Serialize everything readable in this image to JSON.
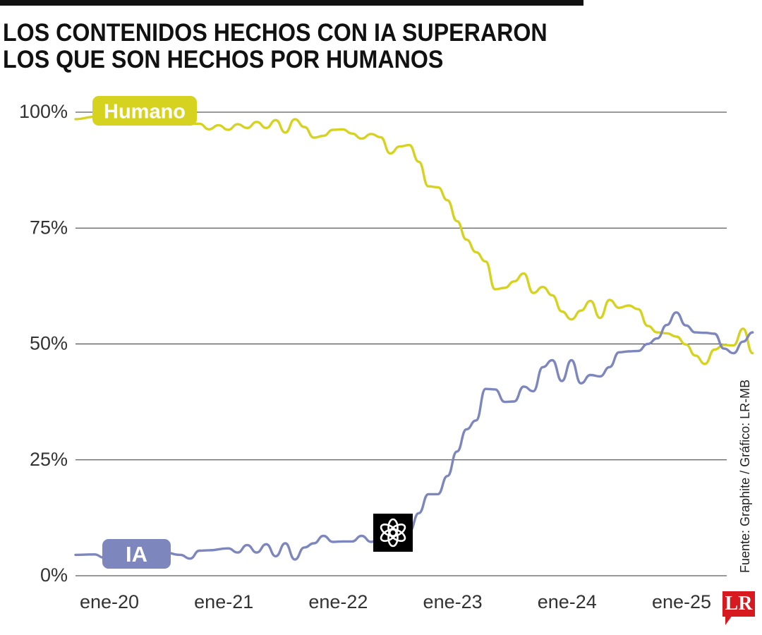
{
  "title": {
    "line1": "LOS CONTENIDOS HECHOS CON IA SUPERARON",
    "line2": "LOS QUE SON HECHOS POR HUMANOS"
  },
  "source": "Fuente: Graphite / Gráfico: LR-MB",
  "logo": {
    "text": "LR",
    "color": "#d71920"
  },
  "openai_icon": "openai-logo-icon",
  "chart_data": {
    "type": "line",
    "x_start": "2020-01",
    "x_end": "2025-05",
    "ylim": [
      0,
      100
    ],
    "yticks": [
      {
        "value": 100,
        "label": "100%"
      },
      {
        "value": 75,
        "label": "75%"
      },
      {
        "value": 50,
        "label": "50%"
      },
      {
        "value": 25,
        "label": "25%"
      },
      {
        "value": 0,
        "label": "0%"
      }
    ],
    "xticks": [
      {
        "x": "2020-01",
        "label": "ene-20"
      },
      {
        "x": "2021-01",
        "label": "ene-21"
      },
      {
        "x": "2022-01",
        "label": "ene-22"
      },
      {
        "x": "2023-01",
        "label": "ene-23"
      },
      {
        "x": "2024-01",
        "label": "ene-24"
      },
      {
        "x": "2025-01",
        "label": "ene-25"
      }
    ],
    "grid": "horizontal",
    "series": [
      {
        "name": "Humano",
        "color": "#d6d320",
        "points": [
          [
            "2020-01",
            98.5
          ],
          [
            "2020-03",
            99.0
          ],
          [
            "2020-05",
            99.0
          ],
          [
            "2020-07",
            98.8
          ],
          [
            "2020-09",
            98.6
          ],
          [
            "2020-11",
            98.3
          ],
          [
            "2020-12",
            97.6
          ],
          [
            "2021-02",
            97.5
          ],
          [
            "2021-03",
            96.3
          ],
          [
            "2021-04",
            97.2
          ],
          [
            "2021-05",
            96.2
          ],
          [
            "2021-06",
            97.4
          ],
          [
            "2021-07",
            96.6
          ],
          [
            "2021-08",
            97.9
          ],
          [
            "2021-09",
            96.6
          ],
          [
            "2021-10",
            98.3
          ],
          [
            "2021-11",
            95.6
          ],
          [
            "2021-12",
            98.5
          ],
          [
            "2022-01",
            96.8
          ],
          [
            "2022-02",
            94.5
          ],
          [
            "2022-03",
            94.9
          ],
          [
            "2022-04",
            96.2
          ],
          [
            "2022-05",
            96.3
          ],
          [
            "2022-06",
            95.4
          ],
          [
            "2022-07",
            94.3
          ],
          [
            "2022-08",
            95.3
          ],
          [
            "2022-09",
            94.6
          ],
          [
            "2022-10",
            91.1
          ],
          [
            "2022-11",
            92.6
          ],
          [
            "2022-12",
            92.9
          ],
          [
            "2023-01",
            89.3
          ],
          [
            "2023-02",
            84.0
          ],
          [
            "2023-03",
            83.8
          ],
          [
            "2023-04",
            81.0
          ],
          [
            "2023-05",
            76.5
          ],
          [
            "2023-06",
            72.5
          ],
          [
            "2023-07",
            69.8
          ],
          [
            "2023-08",
            67.8
          ],
          [
            "2023-09",
            61.8
          ],
          [
            "2023-10",
            62.1
          ],
          [
            "2023-11",
            63.5
          ],
          [
            "2023-12",
            65.2
          ],
          [
            "2024-01",
            61.0
          ],
          [
            "2024-02",
            62.3
          ],
          [
            "2024-03",
            60.5
          ],
          [
            "2024-04",
            57.0
          ],
          [
            "2024-05",
            55.3
          ],
          [
            "2024-06",
            57.2
          ],
          [
            "2024-07",
            59.3
          ],
          [
            "2024-08",
            55.6
          ],
          [
            "2024-09",
            59.5
          ],
          [
            "2024-10",
            57.8
          ],
          [
            "2024-11",
            58.3
          ],
          [
            "2024-12",
            57.5
          ],
          [
            "2025-01",
            53.9
          ],
          [
            "2025-02",
            52.5
          ],
          [
            "2025-03",
            52.3
          ],
          [
            "2025-04",
            51.6
          ],
          [
            "2025-05",
            49.9
          ],
          [
            "2025-06",
            47.5
          ],
          [
            "2025-07",
            45.7
          ],
          [
            "2025-08",
            48.8
          ],
          [
            "2025-09",
            49.8
          ],
          [
            "2025-10",
            49.7
          ],
          [
            "2025-11",
            53.3
          ],
          [
            "2025-12",
            48.0
          ]
        ]
      },
      {
        "name": "IA",
        "color": "#7d86bd",
        "points": [
          [
            "2020-01",
            4.5
          ],
          [
            "2020-03",
            4.6
          ],
          [
            "2020-04",
            3.9
          ],
          [
            "2020-05",
            4.4
          ],
          [
            "2020-07",
            5.3
          ],
          [
            "2020-08",
            5.1
          ],
          [
            "2020-09",
            4.7
          ],
          [
            "2020-10",
            5.2
          ],
          [
            "2020-12",
            4.5
          ],
          [
            "2021-01",
            3.7
          ],
          [
            "2021-02",
            5.4
          ],
          [
            "2021-03",
            5.5
          ],
          [
            "2021-05",
            5.9
          ],
          [
            "2021-06",
            5.0
          ],
          [
            "2021-07",
            6.6
          ],
          [
            "2021-08",
            5.0
          ],
          [
            "2021-09",
            6.8
          ],
          [
            "2021-10",
            4.2
          ],
          [
            "2021-11",
            7.0
          ],
          [
            "2021-12",
            3.5
          ],
          [
            "2022-01",
            6.1
          ],
          [
            "2022-02",
            7.0
          ],
          [
            "2022-03",
            8.6
          ],
          [
            "2022-04",
            7.3
          ],
          [
            "2022-05",
            7.4
          ],
          [
            "2022-06",
            7.4
          ],
          [
            "2022-07",
            8.6
          ],
          [
            "2022-08",
            7.3
          ],
          [
            "2022-09",
            8.5
          ],
          [
            "2022-10",
            10.6
          ],
          [
            "2022-11",
            10.5
          ],
          [
            "2022-12",
            9.5
          ],
          [
            "2023-01",
            13.5
          ],
          [
            "2023-02",
            17.6
          ],
          [
            "2023-03",
            17.6
          ],
          [
            "2023-04",
            21.5
          ],
          [
            "2023-05",
            26.8
          ],
          [
            "2023-06",
            31.6
          ],
          [
            "2023-07",
            33.5
          ],
          [
            "2023-08",
            40.3
          ],
          [
            "2023-09",
            40.2
          ],
          [
            "2023-10",
            37.5
          ],
          [
            "2023-11",
            37.6
          ],
          [
            "2023-12",
            40.8
          ],
          [
            "2024-01",
            39.8
          ],
          [
            "2024-02",
            45.0
          ],
          [
            "2024-03",
            46.5
          ],
          [
            "2024-04",
            42.0
          ],
          [
            "2024-05",
            46.5
          ],
          [
            "2024-06",
            41.5
          ],
          [
            "2024-07",
            43.3
          ],
          [
            "2024-08",
            43.0
          ],
          [
            "2024-09",
            45.0
          ],
          [
            "2024-10",
            48.2
          ],
          [
            "2024-11",
            48.4
          ],
          [
            "2024-12",
            48.5
          ],
          [
            "2025-01",
            50.0
          ],
          [
            "2025-02",
            51.2
          ],
          [
            "2025-03",
            54.1
          ],
          [
            "2025-04",
            56.8
          ],
          [
            "2025-05",
            54.0
          ],
          [
            "2025-06",
            52.5
          ],
          [
            "2025-07",
            52.4
          ],
          [
            "2025-08",
            52.2
          ],
          [
            "2025-09",
            49.0
          ],
          [
            "2025-10",
            48.0
          ],
          [
            "2025-11",
            50.5
          ],
          [
            "2025-12",
            52.5
          ]
        ]
      }
    ]
  }
}
